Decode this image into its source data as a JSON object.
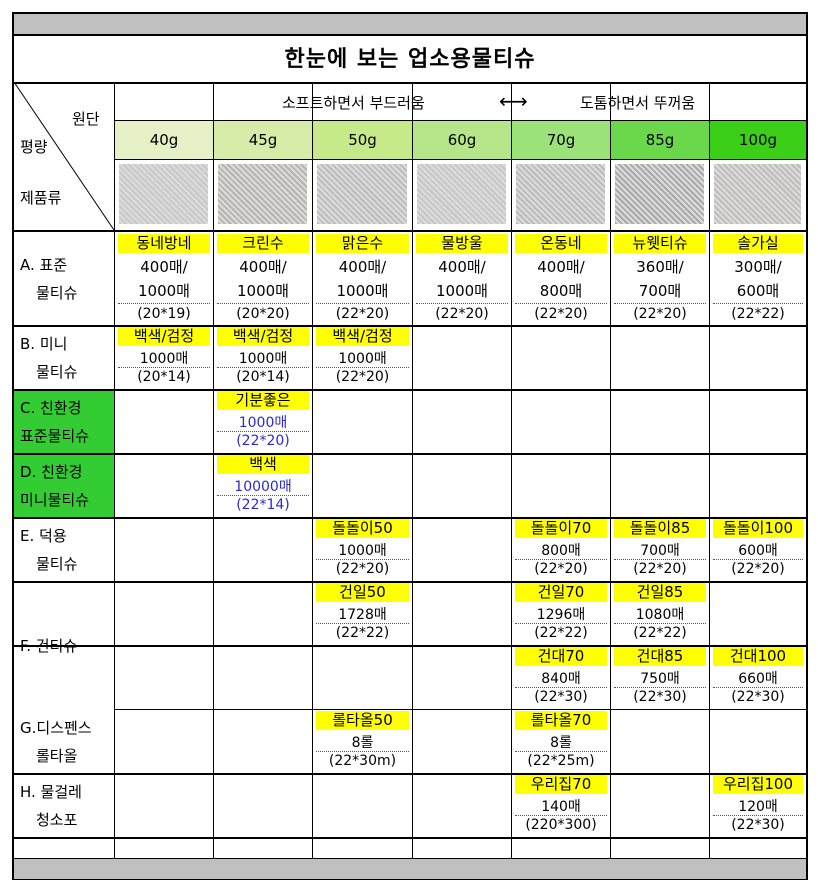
{
  "title": "한눈에 보는 업소용물티슈",
  "header": {
    "corner_fabric": "원단",
    "corner_weight": "평량",
    "corner_product": "제품류",
    "soft_text": "소프트하면서 부드러움",
    "arrow": "⟷",
    "thick_text": "도톰하면서 뚜꺼움",
    "weights": [
      "40g",
      "45g",
      "50g",
      "60g",
      "70g",
      "85g",
      "100g"
    ],
    "weight_colors": [
      "#e6f0c6",
      "#d8ecaa",
      "#c6ea8a",
      "#b6e68a",
      "#9ce27a",
      "#6ad84a",
      "#3ccf18"
    ]
  },
  "categories": [
    {
      "line1": "A. 표준",
      "line2": "물티슈"
    },
    {
      "line1": "B. 미니",
      "line2": "물티슈"
    },
    {
      "line1": "C. 친환경",
      "line2": "표준물티슈"
    },
    {
      "line1": "D. 친환경",
      "line2": "미니물티슈"
    },
    {
      "line1": "E. 덕용",
      "line2": "물티슈"
    },
    {
      "line1": "F. 건티슈",
      "line2": ""
    },
    {
      "line1": "G.디스펜스",
      "line2": "롤타올"
    },
    {
      "line1": "H. 물걸레",
      "line2": "청소포"
    }
  ],
  "category_bg_green": "#33cc33",
  "highlight_color": "#ffff00",
  "rows": {
    "A": [
      {
        "name": "동네방네",
        "q1": "400매/",
        "q2": "1000매",
        "size": "(20*19)"
      },
      {
        "name": "크린수",
        "q1": "400매/",
        "q2": "1000매",
        "size": "(20*20)"
      },
      {
        "name": "맑은수",
        "q1": "400매/",
        "q2": "1000매",
        "size": "(22*20)"
      },
      {
        "name": "물방울",
        "q1": "400매/",
        "q2": "1000매",
        "size": "(22*20)"
      },
      {
        "name": "온동네",
        "q1": "400매/",
        "q2": "800매",
        "size": "(22*20)"
      },
      {
        "name": "뉴웻티슈",
        "q1": "360매/",
        "q2": "700매",
        "size": "(22*20)"
      },
      {
        "name": "솔가실",
        "q1": "300매/",
        "q2": "600매",
        "size": "(22*22)"
      }
    ],
    "B": [
      {
        "name": "백색/검정",
        "qty": "1000매",
        "size": "(20*14)"
      },
      {
        "name": "백색/검정",
        "qty": "1000매",
        "size": "(20*14)"
      },
      {
        "name": "백색/검정",
        "qty": "1000매",
        "size": "(22*20)"
      }
    ],
    "C": {
      "name": "기분좋은",
      "qty": "1000매",
      "size": "(22*20)"
    },
    "D": {
      "name": "백색",
      "qty": "10000매",
      "size": "(22*14)"
    },
    "E": [
      {
        "name": "돌돌이50",
        "qty": "1000매",
        "size": "(22*20)"
      },
      {
        "name": "돌돌이70",
        "qty": "800매",
        "size": "(22*20)"
      },
      {
        "name": "돌돌이85",
        "qty": "700매",
        "size": "(22*20)"
      },
      {
        "name": "돌돌이100",
        "qty": "600매",
        "size": "(22*20)"
      }
    ],
    "F1": [
      {
        "name": "건일50",
        "qty": "1728매",
        "size": "(22*22)"
      },
      {
        "name": "건일70",
        "qty": "1296매",
        "size": "(22*22)"
      },
      {
        "name": "건일85",
        "qty": "1080매",
        "size": "(22*22)"
      }
    ],
    "F2": [
      {
        "name": "건대70",
        "qty": "840매",
        "size": "(22*30)"
      },
      {
        "name": "건대85",
        "qty": "750매",
        "size": "(22*30)"
      },
      {
        "name": "건대100",
        "qty": "660매",
        "size": "(22*30)"
      }
    ],
    "G": [
      {
        "name": "롤타올50",
        "qty": "8롤",
        "size": "(22*30m)"
      },
      {
        "name": "롤타올70",
        "qty": "8롤",
        "size": "(22*25m)"
      }
    ],
    "H": [
      {
        "name": "우리집70",
        "qty": "140매",
        "size": "(220*300)"
      },
      {
        "name": "우리집100",
        "qty": "120매",
        "size": "(22*30)"
      }
    ]
  }
}
